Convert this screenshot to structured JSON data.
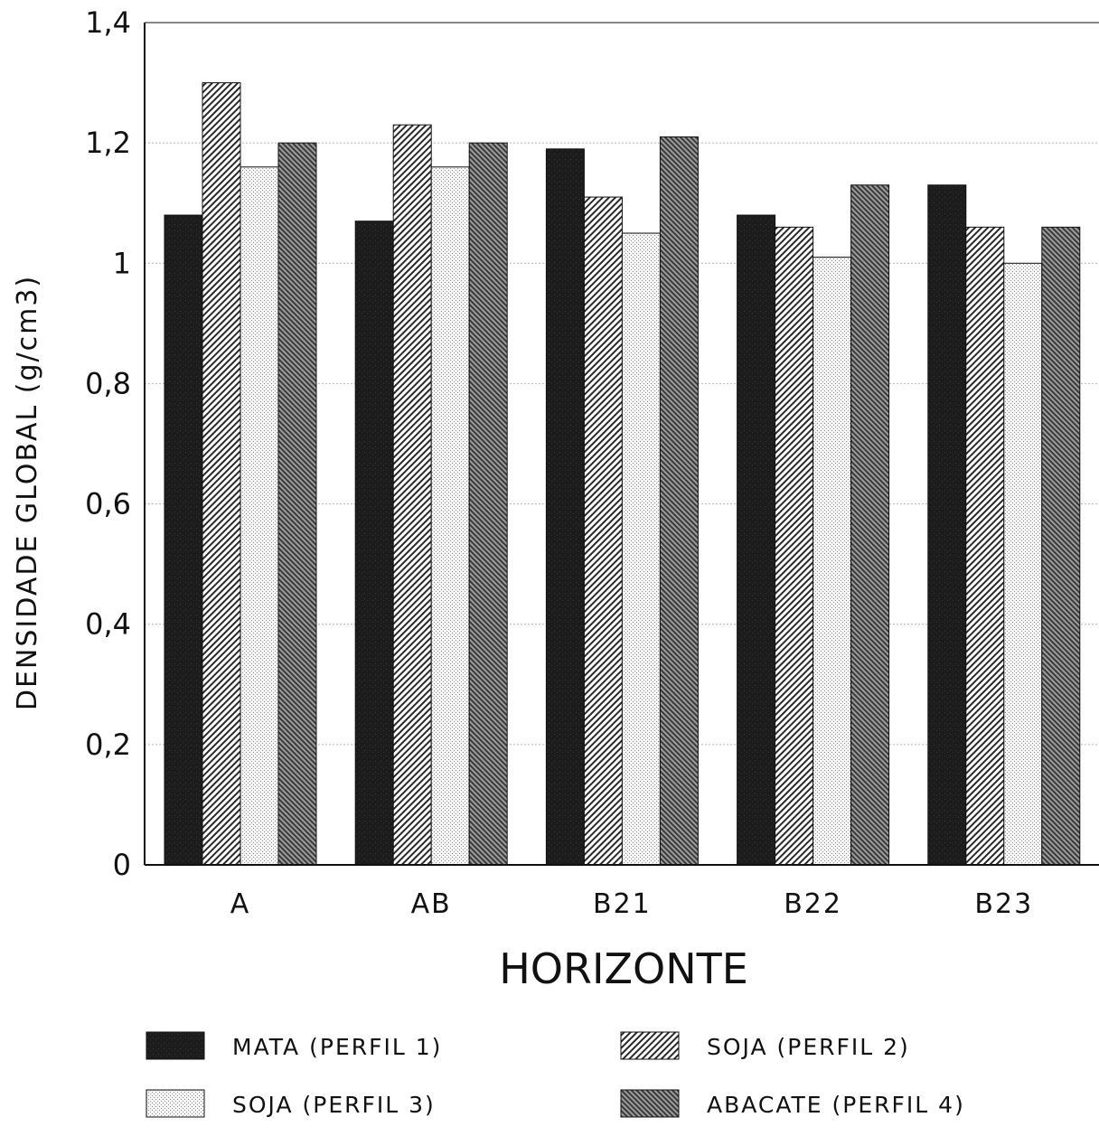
{
  "chart_data": {
    "type": "bar",
    "title": "",
    "xlabel": "HORIZONTE",
    "ylabel": "DENSIDADE GLOBAL (g/cm3)",
    "ylim": [
      0,
      1.4
    ],
    "yticks": [
      {
        "value": 0,
        "label": "0"
      },
      {
        "value": 0.2,
        "label": "0,2"
      },
      {
        "value": 0.4,
        "label": "0,4"
      },
      {
        "value": 0.6,
        "label": "0,6"
      },
      {
        "value": 0.8,
        "label": "0,8"
      },
      {
        "value": 1,
        "label": "1"
      },
      {
        "value": 1.2,
        "label": "1,2"
      },
      {
        "value": 1.4,
        "label": "1,4"
      }
    ],
    "grid": true,
    "legend_position": "bottom",
    "categories": [
      "A",
      "AB",
      "B21",
      "B22",
      "B23"
    ],
    "series": [
      {
        "name": "MATA (PERFIL 1)",
        "pattern": "solid-dark",
        "values": [
          1.08,
          1.07,
          1.19,
          1.08,
          1.13
        ]
      },
      {
        "name": "SOJA (PERFIL 2)",
        "pattern": "diagonal-fine",
        "values": [
          1.3,
          1.23,
          1.11,
          1.06,
          1.06
        ]
      },
      {
        "name": "SOJA (PERFIL 3)",
        "pattern": "dotted-light",
        "values": [
          1.16,
          1.16,
          1.05,
          1.01,
          1.0
        ]
      },
      {
        "name": "ABACATE (PERFIL 4)",
        "pattern": "diagonal-dense",
        "values": [
          1.2,
          1.2,
          1.21,
          1.13,
          1.06
        ]
      }
    ]
  }
}
